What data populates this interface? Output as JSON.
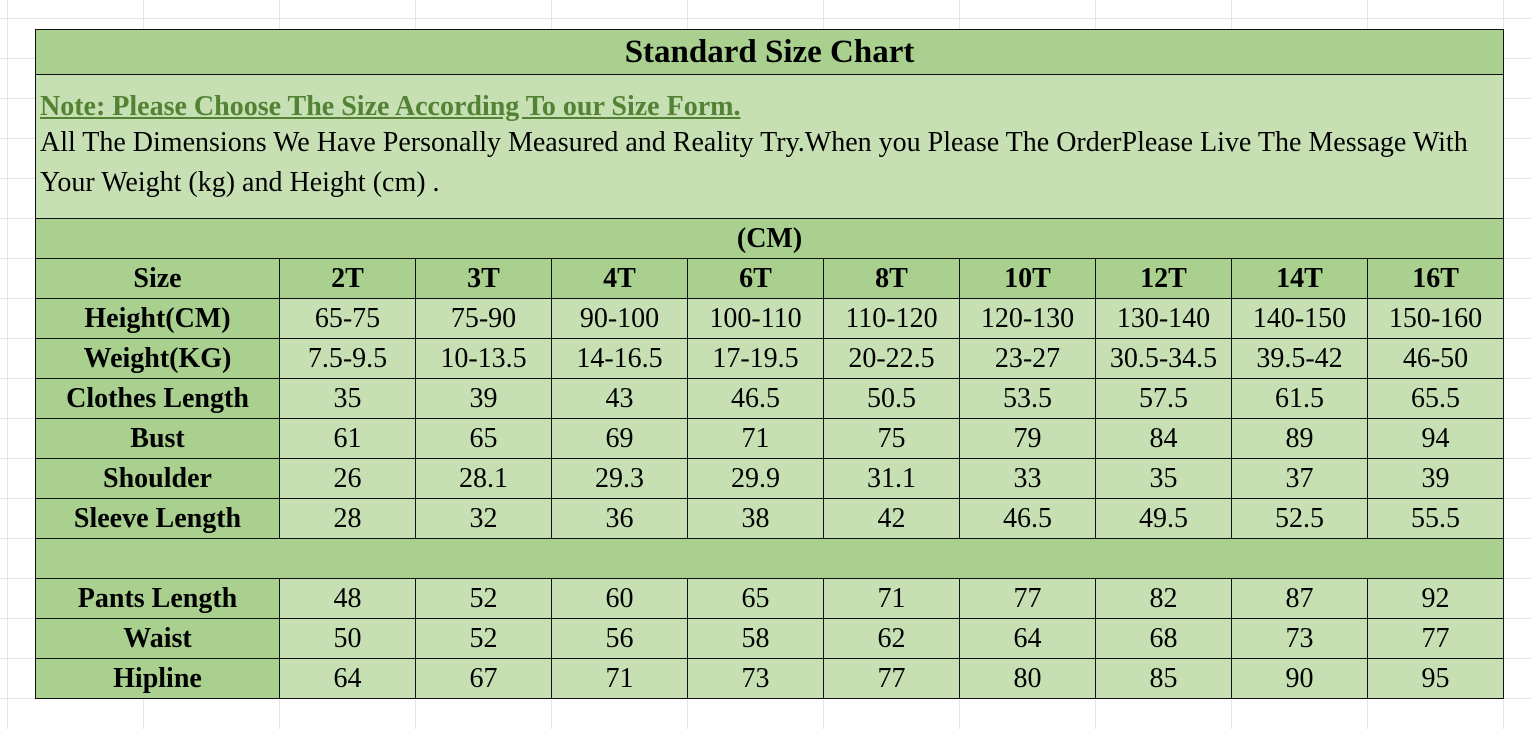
{
  "title": "Standard Size Chart",
  "note": {
    "heading": "Note: Please Choose The Size According To our Size Form.",
    "body": "All The Dimensions We Have Personally Measured and Reality Try.When you Please The OrderPlease Live The Message With Your Weight (kg) and Height (cm) ."
  },
  "unit_label": "(CM)",
  "colors": {
    "header_green": "#a9d08e",
    "cell_green": "#c6e0b4",
    "note_green": "#548235"
  },
  "size_header": {
    "label": "Size",
    "sizes": [
      "2T",
      "3T",
      "4T",
      "6T",
      "8T",
      "10T",
      "12T",
      "14T",
      "16T"
    ]
  },
  "top_rows": [
    {
      "label": "Height(CM)",
      "values": [
        "65-75",
        "75-90",
        "90-100",
        "100-110",
        "110-120",
        "120-130",
        "130-140",
        "140-150",
        "150-160"
      ]
    },
    {
      "label": "Weight(KG)",
      "values": [
        "7.5-9.5",
        "10-13.5",
        "14-16.5",
        "17-19.5",
        "20-22.5",
        "23-27",
        "30.5-34.5",
        "39.5-42",
        "46-50"
      ]
    },
    {
      "label": "Clothes Length",
      "values": [
        "35",
        "39",
        "43",
        "46.5",
        "50.5",
        "53.5",
        "57.5",
        "61.5",
        "65.5"
      ]
    },
    {
      "label": "Bust",
      "values": [
        "61",
        "65",
        "69",
        "71",
        "75",
        "79",
        "84",
        "89",
        "94"
      ]
    },
    {
      "label": "Shoulder",
      "values": [
        "26",
        "28.1",
        "29.3",
        "29.9",
        "31.1",
        "33",
        "35",
        "37",
        "39"
      ]
    },
    {
      "label": "Sleeve Length",
      "values": [
        "28",
        "32",
        "36",
        "38",
        "42",
        "46.5",
        "49.5",
        "52.5",
        "55.5"
      ]
    }
  ],
  "bottom_rows": [
    {
      "label": "Pants Length",
      "values": [
        "48",
        "52",
        "60",
        "65",
        "71",
        "77",
        "82",
        "87",
        "92"
      ]
    },
    {
      "label": "Waist",
      "values": [
        "50",
        "52",
        "56",
        "58",
        "62",
        "64",
        "68",
        "73",
        "77"
      ]
    },
    {
      "label": "Hipline",
      "values": [
        "64",
        "67",
        "71",
        "73",
        "77",
        "80",
        "85",
        "90",
        "95"
      ]
    }
  ]
}
